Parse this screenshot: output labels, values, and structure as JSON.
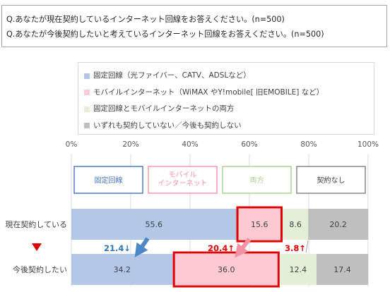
{
  "questions": {
    "q1": "Q.あなたが現在契約しているインターネット回線をお答えください。(n=500)",
    "q2": "Q.あなたが今後契約したいと考えているインターネット回線をお答えください。(n=500)"
  },
  "legend": [
    {
      "label": "固定回線（光ファイバー、CATV、ADSLなど）",
      "color": "#b4c7e7"
    },
    {
      "label": "モバイルインターネット（WiMAX やY!mobile[ 旧EMOBILE] など）",
      "color": "#ffc9d3"
    },
    {
      "label": "固定回線とモバイルインターネットの両方",
      "color": "#e4efd8"
    },
    {
      "label": "いずれも契約していない／今後も契約しない",
      "color": "#bfbfbf"
    }
  ],
  "chart_data": {
    "type": "bar",
    "orientation": "horizontal",
    "stacked": true,
    "xlim": [
      0,
      100
    ],
    "x_ticks": [
      "0%",
      "20%",
      "40%",
      "60%",
      "80%",
      "100%"
    ],
    "categories": [
      "現在契約している",
      "今後契約したい"
    ],
    "series": [
      {
        "name": "固定回線",
        "values": [
          55.6,
          34.2
        ],
        "color": "#b4c7e7",
        "header_color": "#4472c4"
      },
      {
        "name": "モバイル\nインターネット",
        "values": [
          15.6,
          36.0
        ],
        "color": "#ffc9d3",
        "header_color": "#ff8fa3"
      },
      {
        "name": "両方",
        "values": [
          8.6,
          12.4
        ],
        "color": "#e4efd8",
        "header_color": "#a9d18e"
      },
      {
        "name": "契約なし",
        "values": [
          20.2,
          17.4
        ],
        "color": "#bfbfbf",
        "header_color": "#7f7f7f"
      }
    ],
    "value_labels": {
      "row1": [
        "55.6",
        "15.6",
        "8.6",
        "20.2"
      ],
      "row2": [
        "34.2",
        "36.0",
        "12.4",
        "17.4"
      ]
    },
    "changes": [
      {
        "label": "21.4↓",
        "color": "#2e75b6"
      },
      {
        "label": "20.4↑",
        "color": "#e00000"
      },
      {
        "label": "3.8↑",
        "color": "#e00000"
      }
    ],
    "grid": true,
    "legend_position": "top"
  }
}
